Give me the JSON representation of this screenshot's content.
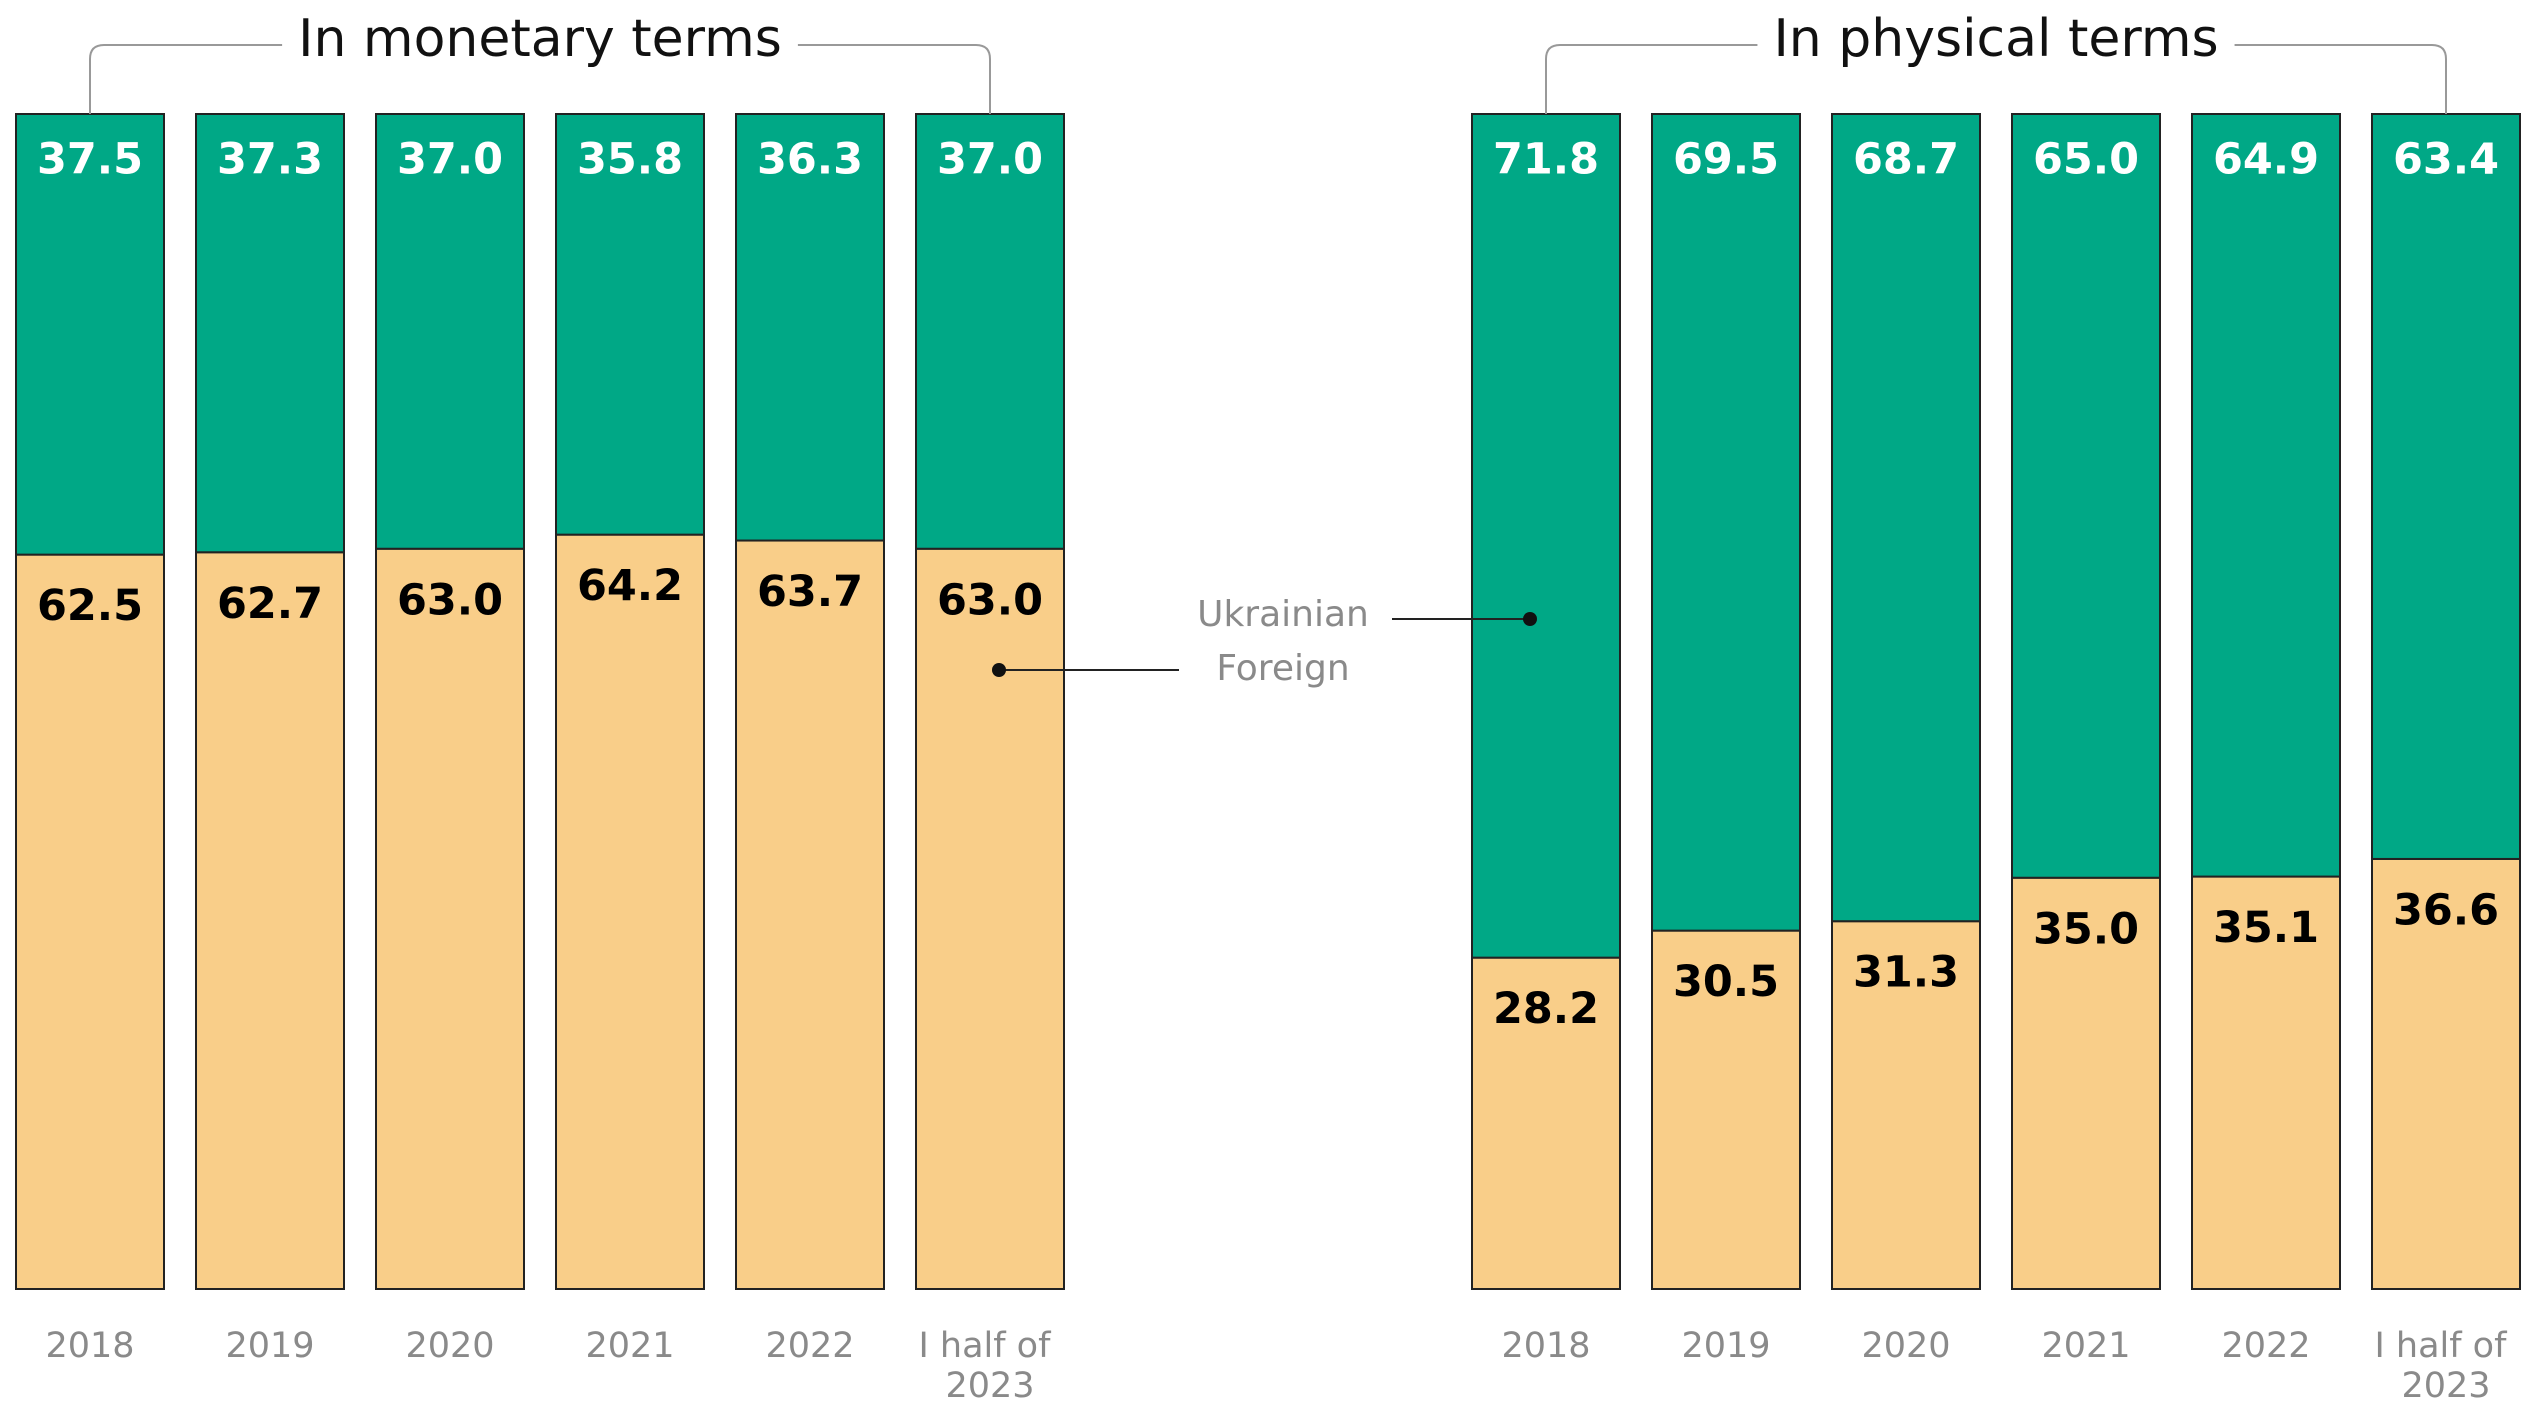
{
  "chart_data": [
    {
      "type": "stacked_bar",
      "title": "In monetary terms",
      "categories": [
        "2018",
        "2019",
        "2020",
        "2021",
        "2022",
        "I half of 2023"
      ],
      "ylim": [
        0,
        100
      ],
      "series": [
        {
          "name": "Foreign",
          "color": "#f9ce89",
          "values": [
            62.5,
            62.7,
            63.0,
            64.2,
            63.7,
            63.0
          ],
          "value_labels": [
            "62.5",
            "62.7",
            "63.0",
            "64.2",
            "63.7",
            "63.0"
          ]
        },
        {
          "name": "Ukrainian",
          "color": "#00a886",
          "values": [
            37.5,
            37.3,
            37.0,
            35.8,
            36.3,
            37.0
          ],
          "value_labels": [
            "37.5",
            "37.3",
            "37.0",
            "35.8",
            "36.3",
            "37.0"
          ]
        }
      ]
    },
    {
      "type": "stacked_bar",
      "title": "In physical terms",
      "categories": [
        "2018",
        "2019",
        "2020",
        "2021",
        "2022",
        "I half of 2023"
      ],
      "ylim": [
        0,
        100
      ],
      "series": [
        {
          "name": "Foreign",
          "color": "#f9ce89",
          "values": [
            28.2,
            30.5,
            31.3,
            35.0,
            35.1,
            36.6
          ],
          "value_labels": [
            "28.2",
            "30.5",
            "31.3",
            "35.0",
            "35.1",
            "36.6"
          ]
        },
        {
          "name": "Ukrainian",
          "color": "#00a886",
          "values": [
            71.8,
            69.5,
            68.7,
            65.0,
            64.9,
            63.4
          ],
          "value_labels": [
            "71.8",
            "69.5",
            "68.7",
            "65.0",
            "64.9",
            "63.4"
          ]
        }
      ]
    }
  ]
}
